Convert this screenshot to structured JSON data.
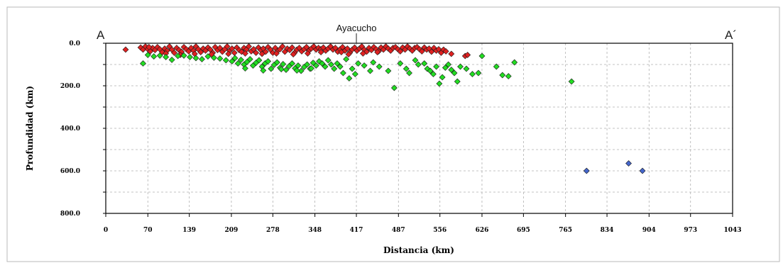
{
  "profile": {
    "start_label": "A",
    "end_label": "A´",
    "city_label": "Ayacucho",
    "city_distance_km": 417
  },
  "chart_data": {
    "type": "scatter",
    "title": "",
    "xlabel": "Distancia (km)",
    "ylabel": "Profundidad (km)",
    "xlim": [
      0,
      1043
    ],
    "ylim": [
      800,
      0
    ],
    "y_inverted": true,
    "grid": true,
    "x_ticks": [
      0,
      70,
      139,
      209,
      278,
      348,
      417,
      487,
      556,
      626,
      695,
      765,
      834,
      904,
      973,
      1043
    ],
    "x_tick_labels": [
      "0",
      "70",
      "139",
      "209",
      "278",
      "348",
      "417",
      "487",
      "556",
      "626",
      "695",
      "765",
      "834",
      "904",
      "973",
      "1043"
    ],
    "y_ticks": [
      0,
      200,
      400,
      600,
      800
    ],
    "y_tick_labels": [
      "0.0",
      "200.0",
      "400.0",
      "600.0",
      "800.0"
    ],
    "series": [
      {
        "color": "#e02020",
        "marker": "diamond",
        "points": [
          [
            33,
            30
          ],
          [
            58,
            20
          ],
          [
            62,
            30
          ],
          [
            66,
            15
          ],
          [
            70,
            28
          ],
          [
            74,
            38
          ],
          [
            78,
            22
          ],
          [
            82,
            32
          ],
          [
            86,
            18
          ],
          [
            90,
            28
          ],
          [
            94,
            42
          ],
          [
            98,
            25
          ],
          [
            102,
            35
          ],
          [
            106,
            15
          ],
          [
            110,
            30
          ],
          [
            114,
            45
          ],
          [
            118,
            22
          ],
          [
            122,
            32
          ],
          [
            126,
            40
          ],
          [
            130,
            18
          ],
          [
            134,
            28
          ],
          [
            138,
            38
          ],
          [
            142,
            22
          ],
          [
            146,
            35
          ],
          [
            150,
            15
          ],
          [
            154,
            28
          ],
          [
            158,
            42
          ],
          [
            162,
            25
          ],
          [
            166,
            35
          ],
          [
            170,
            20
          ],
          [
            174,
            30
          ],
          [
            178,
            45
          ],
          [
            182,
            18
          ],
          [
            186,
            32
          ],
          [
            190,
            22
          ],
          [
            194,
            40
          ],
          [
            198,
            28
          ],
          [
            202,
            15
          ],
          [
            206,
            35
          ],
          [
            210,
            25
          ],
          [
            214,
            45
          ],
          [
            218,
            20
          ],
          [
            222,
            32
          ],
          [
            226,
            40
          ],
          [
            230,
            22
          ],
          [
            234,
            30
          ],
          [
            238,
            15
          ],
          [
            242,
            38
          ],
          [
            246,
            28
          ],
          [
            250,
            45
          ],
          [
            254,
            20
          ],
          [
            258,
            32
          ],
          [
            262,
            25
          ],
          [
            266,
            40
          ],
          [
            270,
            18
          ],
          [
            274,
            30
          ],
          [
            278,
            45
          ],
          [
            282,
            22
          ],
          [
            286,
            35
          ],
          [
            290,
            28
          ],
          [
            294,
            15
          ],
          [
            298,
            40
          ],
          [
            302,
            25
          ],
          [
            306,
            32
          ],
          [
            310,
            20
          ],
          [
            314,
            45
          ],
          [
            318,
            30
          ],
          [
            322,
            22
          ],
          [
            326,
            38
          ],
          [
            330,
            28
          ],
          [
            334,
            18
          ],
          [
            338,
            35
          ],
          [
            342,
            25
          ],
          [
            346,
            15
          ],
          [
            350,
            30
          ],
          [
            354,
            22
          ],
          [
            358,
            28
          ],
          [
            362,
            20
          ],
          [
            366,
            35
          ],
          [
            370,
            25
          ],
          [
            374,
            15
          ],
          [
            378,
            30
          ],
          [
            382,
            22
          ],
          [
            386,
            40
          ],
          [
            390,
            28
          ],
          [
            394,
            18
          ],
          [
            398,
            35
          ],
          [
            402,
            25
          ],
          [
            406,
            45
          ],
          [
            410,
            30
          ],
          [
            414,
            20
          ],
          [
            418,
            35
          ],
          [
            422,
            25
          ],
          [
            426,
            15
          ],
          [
            430,
            30
          ],
          [
            434,
            40
          ],
          [
            438,
            22
          ],
          [
            442,
            32
          ],
          [
            446,
            18
          ],
          [
            450,
            28
          ],
          [
            454,
            38
          ],
          [
            458,
            20
          ],
          [
            462,
            30
          ],
          [
            466,
            15
          ],
          [
            470,
            25
          ],
          [
            474,
            35
          ],
          [
            478,
            22
          ],
          [
            482,
            18
          ],
          [
            486,
            28
          ],
          [
            490,
            38
          ],
          [
            494,
            20
          ],
          [
            498,
            30
          ],
          [
            502,
            15
          ],
          [
            506,
            25
          ],
          [
            510,
            35
          ],
          [
            514,
            22
          ],
          [
            518,
            18
          ],
          [
            522,
            28
          ],
          [
            526,
            38
          ],
          [
            530,
            20
          ],
          [
            534,
            30
          ],
          [
            538,
            25
          ],
          [
            542,
            40
          ],
          [
            546,
            22
          ],
          [
            550,
            35
          ],
          [
            554,
            28
          ],
          [
            558,
            45
          ],
          [
            562,
            30
          ],
          [
            566,
            38
          ],
          [
            575,
            50
          ],
          [
            598,
            60
          ],
          [
            602,
            55
          ],
          [
            72,
            18
          ],
          [
            100,
            48
          ],
          [
            124,
            55
          ],
          [
            148,
            50
          ],
          [
            176,
            52
          ],
          [
            204,
            50
          ],
          [
            232,
            48
          ],
          [
            260,
            50
          ],
          [
            284,
            48
          ],
          [
            312,
            52
          ],
          [
            336,
            48
          ],
          [
            358,
            42
          ],
          [
            392,
            42
          ],
          [
            404,
            52
          ],
          [
            428,
            48
          ],
          [
            452,
            42
          ]
        ]
      },
      {
        "color": "#22dd22",
        "marker": "diamond",
        "points": [
          [
            62,
            95
          ],
          [
            70,
            55
          ],
          [
            80,
            62
          ],
          [
            90,
            58
          ],
          [
            100,
            65
          ],
          [
            110,
            78
          ],
          [
            120,
            60
          ],
          [
            130,
            58
          ],
          [
            140,
            65
          ],
          [
            150,
            70
          ],
          [
            160,
            75
          ],
          [
            170,
            62
          ],
          [
            180,
            68
          ],
          [
            190,
            72
          ],
          [
            200,
            80
          ],
          [
            210,
            85
          ],
          [
            215,
            70
          ],
          [
            220,
            95
          ],
          [
            225,
            78
          ],
          [
            230,
            100
          ],
          [
            235,
            88
          ],
          [
            240,
            75
          ],
          [
            245,
            105
          ],
          [
            250,
            92
          ],
          [
            255,
            80
          ],
          [
            260,
            110
          ],
          [
            265,
            95
          ],
          [
            270,
            85
          ],
          [
            275,
            120
          ],
          [
            280,
            102
          ],
          [
            285,
            90
          ],
          [
            290,
            115
          ],
          [
            295,
            98
          ],
          [
            300,
            125
          ],
          [
            305,
            108
          ],
          [
            310,
            95
          ],
          [
            315,
            118
          ],
          [
            320,
            105
          ],
          [
            325,
            130
          ],
          [
            330,
            112
          ],
          [
            335,
            100
          ],
          [
            340,
            120
          ],
          [
            345,
            92
          ],
          [
            350,
            105
          ],
          [
            355,
            85
          ],
          [
            360,
            95
          ],
          [
            365,
            110
          ],
          [
            370,
            80
          ],
          [
            375,
            100
          ],
          [
            380,
            120
          ],
          [
            385,
            95
          ],
          [
            390,
            110
          ],
          [
            395,
            140
          ],
          [
            400,
            75
          ],
          [
            405,
            165
          ],
          [
            410,
            120
          ],
          [
            415,
            145
          ],
          [
            420,
            95
          ],
          [
            430,
            105
          ],
          [
            440,
            130
          ],
          [
            445,
            90
          ],
          [
            455,
            110
          ],
          [
            470,
            130
          ],
          [
            480,
            210
          ],
          [
            490,
            95
          ],
          [
            500,
            120
          ],
          [
            505,
            140
          ],
          [
            515,
            80
          ],
          [
            520,
            100
          ],
          [
            530,
            95
          ],
          [
            535,
            120
          ],
          [
            540,
            130
          ],
          [
            545,
            145
          ],
          [
            550,
            110
          ],
          [
            555,
            190
          ],
          [
            560,
            160
          ],
          [
            565,
            115
          ],
          [
            570,
            100
          ],
          [
            575,
            125
          ],
          [
            580,
            140
          ],
          [
            585,
            180
          ],
          [
            590,
            110
          ],
          [
            600,
            120
          ],
          [
            610,
            145
          ],
          [
            620,
            140
          ],
          [
            626,
            60
          ],
          [
            650,
            110
          ],
          [
            660,
            150
          ],
          [
            670,
            155
          ],
          [
            680,
            90
          ],
          [
            775,
            180
          ],
          [
            232,
            118
          ],
          [
            262,
            128
          ],
          [
            292,
            122
          ],
          [
            318,
            128
          ],
          [
            342,
            118
          ]
        ]
      },
      {
        "color": "#4466cc",
        "marker": "diamond",
        "points": [
          [
            800,
            600
          ],
          [
            870,
            565
          ],
          [
            893,
            600
          ]
        ]
      }
    ]
  }
}
